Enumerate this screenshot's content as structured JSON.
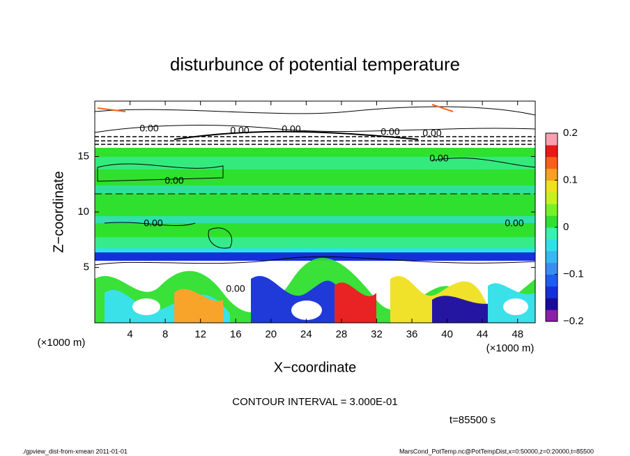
{
  "chart_data": {
    "type": "contour",
    "title": "disturbunce of potential temperature",
    "x_label": "X−coordinate",
    "y_label": "Z−coordinate",
    "x_unit": "(×1000 m)",
    "y_unit": "(×1000 m)",
    "xlim": [
      0,
      50
    ],
    "xticks": [
      4,
      8,
      12,
      16,
      20,
      24,
      28,
      32,
      36,
      40,
      44,
      48
    ],
    "ylim": [
      0,
      20
    ],
    "yticks": [
      5,
      10,
      15
    ],
    "colorbar": {
      "lim": [
        -0.2,
        0.2
      ],
      "ticks": [
        {
          "value": -0.2,
          "label": "−0.2"
        },
        {
          "value": -0.1,
          "label": "−0.1"
        },
        0,
        0.1,
        0.2
      ],
      "colors": [
        "#8b1fa8",
        "#1a0a9e",
        "#1530d8",
        "#1f5cf0",
        "#3a8cf5",
        "#34b9f0",
        "#30e0e8",
        "#38f0b0",
        "#2fe02f",
        "#78f028",
        "#c8f020",
        "#f0e020",
        "#f8a020",
        "#f86018",
        "#e81818",
        "#f8a0b0"
      ]
    },
    "contour_labels": [
      "0.00",
      "0.00",
      "0.00",
      "0.00",
      "0.00",
      "0.00",
      "0.00",
      "0.00",
      "0.00",
      "0.00"
    ],
    "contour_interval": "CONTOUR INTERVAL = 3.000E-01",
    "time_label": "t=85500 s",
    "footer_left": "./gpview_dist-from-xmean  2011-01-01",
    "footer_right": "MarsCond_PotTemp.nc@PotTempDist,x=0:50000,z=0:20000,t=85500"
  }
}
